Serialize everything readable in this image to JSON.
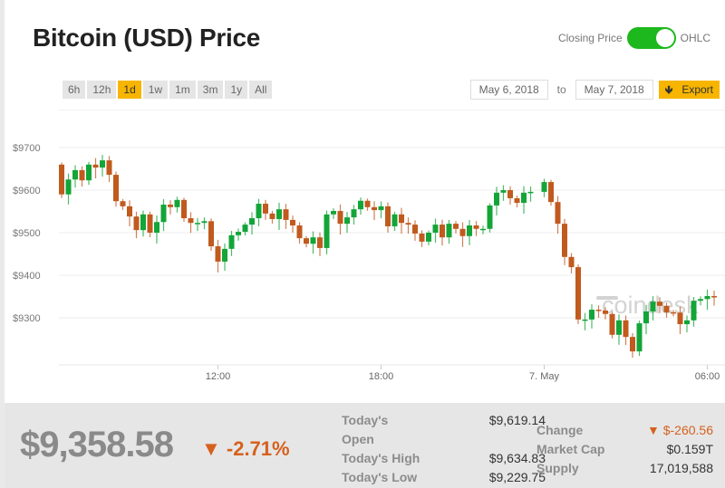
{
  "header": {
    "title": "Bitcoin (USD) Price",
    "toggle_left": "Closing Price",
    "toggle_right": "OHLC",
    "toggle_on": true
  },
  "ranges": [
    "6h",
    "12h",
    "1d",
    "1w",
    "1m",
    "3m",
    "1y",
    "All"
  ],
  "active_range": "1d",
  "dates": {
    "from": "May 6, 2018",
    "to_label": "to",
    "to": "May 7, 2018",
    "export": "Export"
  },
  "colors": {
    "up": "#13a538",
    "down": "#c05a1e",
    "accent": "#f7b500",
    "toggle": "#1db81d"
  },
  "watermark": "coindesk",
  "chart_data": {
    "type": "candlestick",
    "interval_minutes": 15,
    "start_time": "May 6 06:15",
    "first_open": 9660,
    "closes": [
      9590,
      9625,
      9647,
      9623,
      9660,
      9653,
      9670,
      9636,
      9574,
      9562,
      9538,
      9506,
      9543,
      9500,
      9525,
      9566,
      9560,
      9577,
      9534,
      9523,
      9523,
      9527,
      9468,
      9432,
      9462,
      9494,
      9502,
      9519,
      9534,
      9568,
      9545,
      9532,
      9555,
      9530,
      9517,
      9487,
      9474,
      9489,
      9464,
      9543,
      9551,
      9521,
      9536,
      9555,
      9575,
      9560,
      9553,
      9562,
      9515,
      9543,
      9523,
      9519,
      9498,
      9479,
      9500,
      9519,
      9489,
      9521,
      9509,
      9492,
      9517,
      9509,
      9509,
      9564,
      9594,
      9600,
      9581,
      9570,
      9594,
      9596,
      null,
      9619,
      9572,
      9521,
      9443,
      9419,
      9296,
      9296,
      9319,
      9317,
      9309,
      9260,
      9294,
      9255,
      9221,
      9287,
      9315,
      9338,
      9328,
      9313,
      9312,
      9285,
      9294,
      9340,
      9344,
      9351,
      9350
    ],
    "ylim": [
      9200,
      9700
    ],
    "yticks": [
      {
        "value": 9700,
        "label": "$9700"
      },
      {
        "value": 9600,
        "label": "$9600"
      },
      {
        "value": 9500,
        "label": "$9500"
      },
      {
        "value": 9400,
        "label": "$9400"
      },
      {
        "value": 9300,
        "label": "$9300"
      }
    ],
    "xticks": [
      {
        "index": 23,
        "label": "12:00"
      },
      {
        "index": 47,
        "label": "18:00"
      },
      {
        "index": 71,
        "label": "7. May"
      },
      {
        "index": 95,
        "label": "06:00"
      }
    ],
    "grid": true
  },
  "summary": {
    "price": "$9,358.58",
    "change_pct": "▼ -2.71%",
    "open_label": "Today's Open",
    "open_label_1": "Today's",
    "open_label_2": "Open",
    "open": "$9,619.14",
    "high_label": "Today's High",
    "high": "$9,634.83",
    "low_label": "Today's Low",
    "low": "$9,229.75",
    "change_label": "Change",
    "change": "▼ $-260.56",
    "mcap_label": "Market Cap",
    "mcap": "$0.159T",
    "supply_label": "Supply",
    "supply": "17,019,588"
  }
}
